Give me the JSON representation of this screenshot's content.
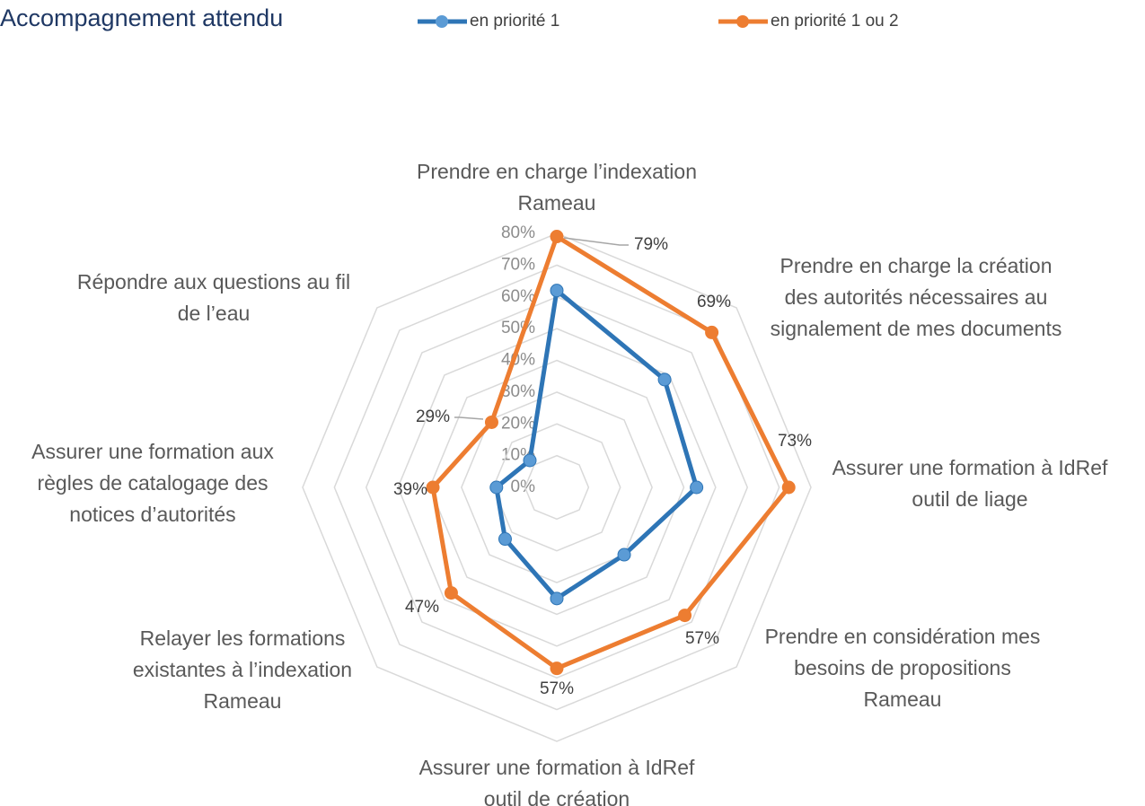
{
  "chart_data": {
    "type": "radar",
    "title": "Accompagnement attendu",
    "categories": [
      [
        "Prendre en charge l’indexation",
        "Rameau"
      ],
      [
        "Prendre en charge la création",
        "des autorités nécessaires au",
        "signalement de mes documents"
      ],
      [
        "Assurer une formation à IdRef",
        "outil de liage"
      ],
      [
        "Prendre en considération mes",
        "besoins de propositions",
        "Rameau"
      ],
      [
        "Assurer une formation à IdRef",
        "outil de création"
      ],
      [
        "Relayer les formations",
        "existantes à l’indexation",
        "Rameau"
      ],
      [
        "Assurer une formation aux",
        "règles de catalogage des",
        "notices d’autorités"
      ],
      [
        "Répondre aux questions au fil",
        "de l’eau"
      ]
    ],
    "series": [
      {
        "name": "en priorité 1",
        "color": "#2e75b6",
        "marker_color": "#5b9bd5",
        "values": [
          62,
          48,
          44,
          30,
          35,
          23,
          19,
          12
        ]
      },
      {
        "name": "en priorité 1 ou 2",
        "color": "#ed7d31",
        "marker_color": "#ed7d31",
        "values": [
          79,
          69,
          73,
          57,
          57,
          47,
          39,
          29
        ],
        "value_labels": [
          "79%",
          "69%",
          "73%",
          "57%",
          "57%",
          "47%",
          "39%",
          "29%"
        ]
      }
    ],
    "ylim": [
      0,
      80
    ],
    "yticks": [
      {
        "value": 0,
        "label": "0%"
      },
      {
        "value": 10,
        "label": "10%"
      },
      {
        "value": 20,
        "label": "20%"
      },
      {
        "value": 30,
        "label": "30%"
      },
      {
        "value": 40,
        "label": "40%"
      },
      {
        "value": 50,
        "label": "50%"
      },
      {
        "value": 60,
        "label": "60%"
      },
      {
        "value": 70,
        "label": "70%"
      },
      {
        "value": 80,
        "label": "80%"
      }
    ],
    "grid": true,
    "legend": "top"
  }
}
